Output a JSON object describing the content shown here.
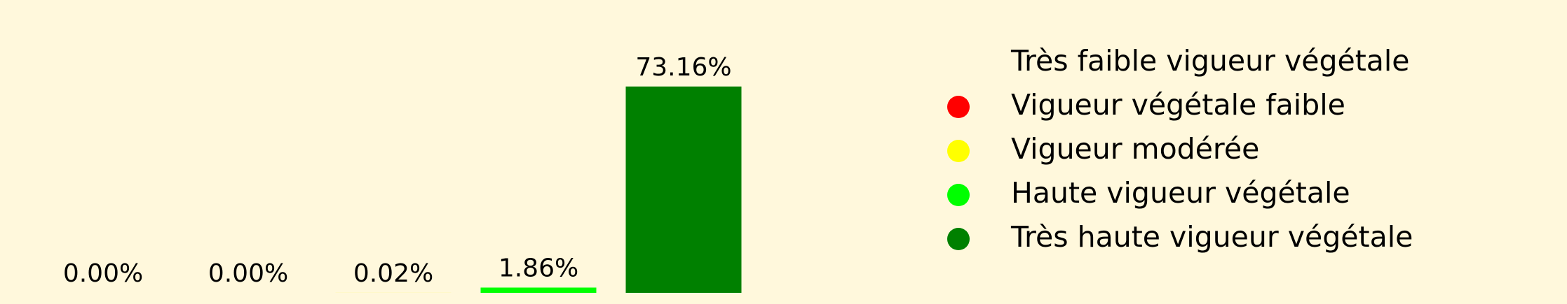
{
  "chart_data": {
    "type": "bar",
    "categories": [
      "Très faible vigueur végétale",
      "Vigueur végétale faible",
      "Vigueur modérée",
      "Haute vigueur végétale",
      "Très haute vigueur végétale"
    ],
    "values": [
      0,
      0,
      0.02,
      1.86,
      73.16
    ],
    "value_labels": [
      "0.00%",
      "0.00%",
      "0.02%",
      "1.86%",
      "73.16%"
    ],
    "colors": [
      "#fff8dc",
      "#ff0000",
      "#ffff00",
      "#00ff00",
      "#008000"
    ],
    "ylim": [
      0,
      76.82
    ],
    "legend": "right"
  }
}
